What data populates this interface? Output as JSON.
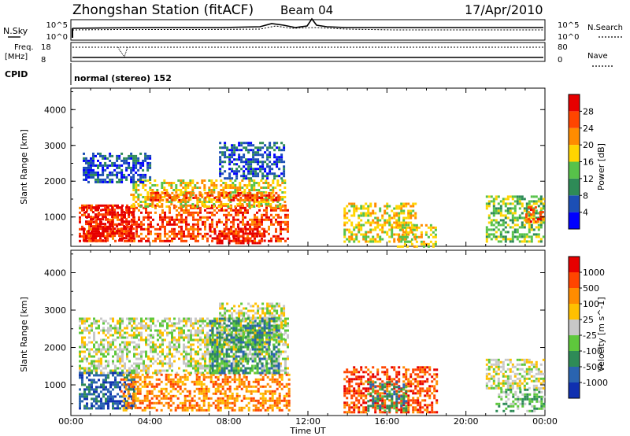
{
  "header": {
    "station": "Zhongshan Station (fitACF)",
    "beam": "Beam 04",
    "date": "17/Apr/2010"
  },
  "top_panels": {
    "nsky_label": "N.Sky",
    "nsky_top": "10^5",
    "nsky_bottom": "10^0",
    "nsearch_top": "10^5",
    "nsearch_bottom": "10^0",
    "nsearch_label": "N.Search",
    "freq_label": "Freq.",
    "freq_unit": "[MHz]",
    "freq_top": "18",
    "freq_bottom": "8",
    "nave_top": "80",
    "nave_bottom": "0",
    "nave_label": "Nave",
    "cpid_label": "CPID",
    "cpid_text": "normal (stereo) 152"
  },
  "chart_data": [
    {
      "type": "heatmap",
      "title": "",
      "xlabel": "Time UT",
      "ylabel": "Slant Range [km]",
      "x_ticks": [
        "00:00",
        "04:00",
        "08:00",
        "12:00",
        "16:00",
        "20:00",
        "00:00"
      ],
      "y_ticks": [
        1000,
        2000,
        3000,
        4000
      ],
      "ylim": [
        180,
        4600
      ],
      "xlim_hours": [
        0,
        24
      ],
      "colorbar": {
        "label": "Power [dB]",
        "ticks": [
          "28",
          "24",
          "20",
          "16",
          "12",
          "8",
          "4"
        ],
        "colors": [
          "#0000ff",
          "#1c4fb5",
          "#2e8b57",
          "#57c24a",
          "#ffd500",
          "#ff8c00",
          "#ff4500",
          "#e60000"
        ]
      },
      "regions": [
        {
          "t0": 0.4,
          "t1": 11.0,
          "r0": 300,
          "r1": 1350,
          "level": 6
        },
        {
          "t0": 0.6,
          "t1": 3.2,
          "r0": 350,
          "r1": 1300,
          "level": 7
        },
        {
          "t0": 3.0,
          "t1": 10.8,
          "r0": 1300,
          "r1": 2050,
          "level": 4
        },
        {
          "t0": 4.0,
          "t1": 10.5,
          "r0": 1450,
          "r1": 1700,
          "level": 6
        },
        {
          "t0": 0.6,
          "t1": 4.0,
          "r0": 2000,
          "r1": 2800,
          "level": 1
        },
        {
          "t0": 7.5,
          "t1": 10.8,
          "r0": 2100,
          "r1": 3100,
          "level": 1
        },
        {
          "t0": 7.0,
          "t1": 9.8,
          "r0": 250,
          "r1": 700,
          "level": 7
        },
        {
          "t0": 13.8,
          "t1": 17.5,
          "r0": 300,
          "r1": 1400,
          "level": 4
        },
        {
          "t0": 16.5,
          "t1": 18.5,
          "r0": 200,
          "r1": 800,
          "level": 4
        },
        {
          "t0": 21.0,
          "t1": 23.9,
          "r0": 300,
          "r1": 1600,
          "level": 3
        },
        {
          "t0": 23.0,
          "t1": 23.9,
          "r0": 900,
          "r1": 1300,
          "level": 6
        }
      ]
    },
    {
      "type": "heatmap",
      "title": "",
      "xlabel": "Time UT",
      "ylabel": "Slant Range [km]",
      "x_ticks": [
        "00:00",
        "04:00",
        "08:00",
        "12:00",
        "16:00",
        "20:00",
        "00:00"
      ],
      "y_ticks": [
        1000,
        2000,
        3000,
        4000
      ],
      "ylim": [
        180,
        4600
      ],
      "xlim_hours": [
        0,
        24
      ],
      "colorbar": {
        "label": "Velocity [m s^-1]",
        "ticks": [
          "1000",
          "500",
          "100",
          "25",
          "-25",
          "-100",
          "-500",
          "-1000"
        ],
        "colors": [
          "#1030b0",
          "#2a64b0",
          "#2e8b57",
          "#5ec83c",
          "#c8c8c8",
          "#ffc000",
          "#ff8c00",
          "#ff4500",
          "#e60000"
        ]
      },
      "regions": [
        {
          "t0": 0.4,
          "t1": 11.0,
          "r0": 1300,
          "r1": 2800,
          "level": 4
        },
        {
          "t0": 7.5,
          "t1": 10.8,
          "r0": 2100,
          "r1": 3200,
          "level": 4
        },
        {
          "t0": 0.4,
          "t1": 3.2,
          "r0": 350,
          "r1": 1350,
          "level": 1
        },
        {
          "t0": 2.5,
          "t1": 11.0,
          "r0": 300,
          "r1": 1300,
          "level": 6
        },
        {
          "t0": 7.0,
          "t1": 10.5,
          "r0": 1300,
          "r1": 2800,
          "level": 2
        },
        {
          "t0": 13.8,
          "t1": 18.5,
          "r0": 250,
          "r1": 1500,
          "level": 7
        },
        {
          "t0": 15.0,
          "t1": 17.0,
          "r0": 300,
          "r1": 1100,
          "level": 2
        },
        {
          "t0": 21.0,
          "t1": 23.9,
          "r0": 900,
          "r1": 1700,
          "level": 4
        },
        {
          "t0": 21.5,
          "t1": 23.9,
          "r0": 300,
          "r1": 900,
          "level": 3
        }
      ]
    }
  ]
}
